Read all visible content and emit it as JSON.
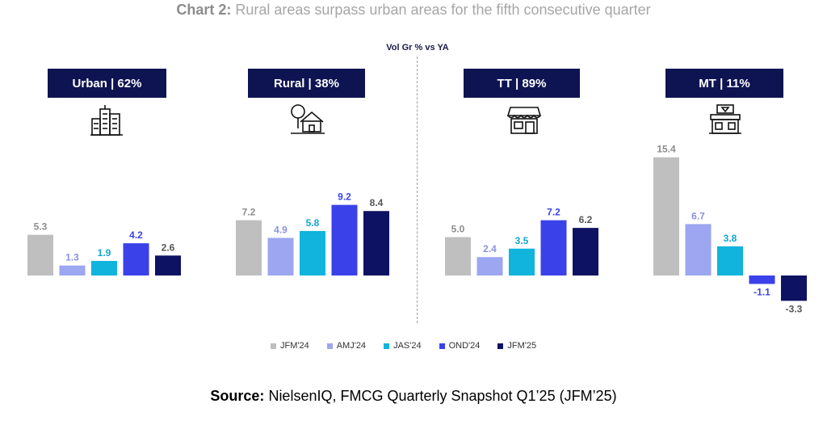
{
  "title": {
    "prefix": "Chart 2:",
    "text": " Rural areas surpass urban areas for the fifth consecutive quarter"
  },
  "subtitle": "Vol Gr % vs YA",
  "panels": [
    {
      "label": "Urban | 62%",
      "icon": "city-buildings-icon"
    },
    {
      "label": "Rural | 38%",
      "icon": "rural-house-tree-icon"
    },
    {
      "label": "TT | 89%",
      "icon": "traditional-store-icon"
    },
    {
      "label": "MT | 11%",
      "icon": "modern-store-icon"
    }
  ],
  "legend": [
    "JFM'24",
    "AMJ'24",
    "JAS'24",
    "OND'24",
    "JFM'25"
  ],
  "colors": [
    "#bfbfbf",
    "#9da6f0",
    "#10b4dc",
    "#3b41e8",
    "#0e1262"
  ],
  "source": {
    "prefix": "Source:",
    "text": " NielsenIQ, FMCG Quarterly Snapshot Q1’25 (JFM’25)"
  },
  "chart_data": {
    "type": "bar",
    "categories": [
      "JFM'24",
      "AMJ'24",
      "JAS'24",
      "OND'24",
      "JFM'25"
    ],
    "groups": [
      {
        "name": "Urban | 62%",
        "values": [
          5.3,
          1.3,
          1.9,
          4.2,
          2.6
        ],
        "labels": [
          "5.3",
          "1.3",
          "1.9",
          "4.2",
          "2.6"
        ]
      },
      {
        "name": "Rural | 38%",
        "values": [
          7.2,
          4.9,
          5.8,
          9.2,
          8.4
        ],
        "labels": [
          "7.2",
          "4.9",
          "5.8",
          "9.2",
          "8.4"
        ]
      },
      {
        "name": "TT | 89%",
        "values": [
          5.0,
          2.4,
          3.5,
          7.2,
          6.2
        ],
        "labels": [
          "5.0",
          "2.4",
          "3.5",
          "7.2",
          "6.2"
        ]
      },
      {
        "name": "MT | 11%",
        "values": [
          15.4,
          6.7,
          3.8,
          -1.1,
          -3.3
        ],
        "labels": [
          "15.4",
          "6.7",
          "3.8",
          "-1.1",
          "-3.3"
        ]
      }
    ],
    "ylabel": "Vol Gr % vs YA"
  }
}
